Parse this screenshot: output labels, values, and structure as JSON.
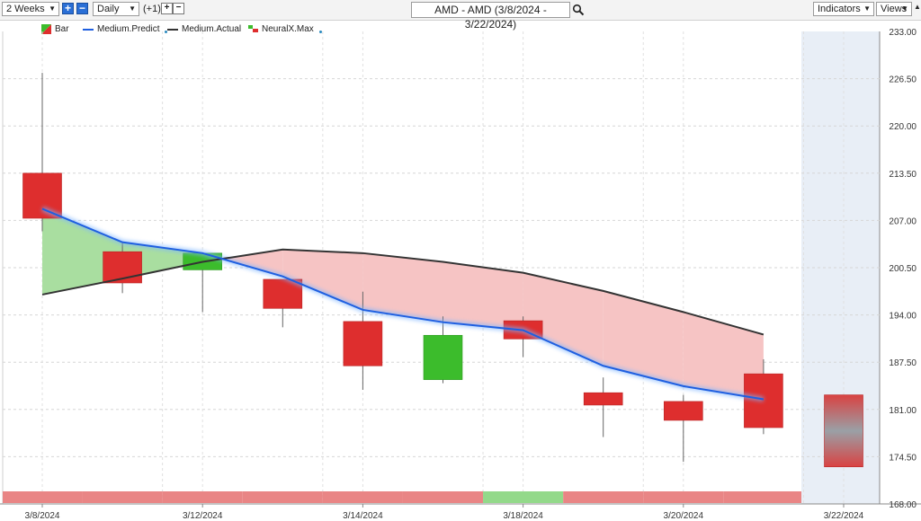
{
  "toolbar": {
    "period": "2 Weeks",
    "interval": "Daily",
    "offset": "(+1)",
    "title": "AMD - AMD (3/8/2024 - 3/22/2024)",
    "indicators": "Indicators",
    "views": "Views"
  },
  "icons": {
    "zoom_in": "plus-icon",
    "zoom_out": "minus-icon",
    "search": "search-icon",
    "pin": "pin-icon"
  },
  "legend": [
    {
      "label": "Bar",
      "icon": "bar-swatch-icon"
    },
    {
      "label": "Medium.Predict",
      "color": "#1f5fe0"
    },
    {
      "label": "Medium.Actual",
      "color": "#333333"
    },
    {
      "label": "NeuralX.Max",
      "icon": "neuralx-flag-icon"
    }
  ],
  "colors": {
    "up": "#3cbc2c",
    "down": "#de2e2e",
    "predict": "#1f5fe0",
    "actual": "#333333",
    "fill_above": "#a9dea0",
    "fill_below": "#f6c4c4",
    "strip_up": "#93d98a",
    "strip_down": "#e98585",
    "forecast_bg": "#e8eef6"
  },
  "chart_data": {
    "type": "candlestick",
    "y_ticks": [
      "233.00",
      "226.50",
      "220.00",
      "213.50",
      "207.00",
      "200.50",
      "194.00",
      "187.50",
      "181.00",
      "174.50",
      "168.00"
    ],
    "ylim": [
      168,
      233
    ],
    "x_tick_labels": [
      {
        "index": 0,
        "label": "3/8/2024"
      },
      {
        "index": 2,
        "label": "3/12/2024"
      },
      {
        "index": 4,
        "label": "3/14/2024"
      },
      {
        "index": 6,
        "label": "3/18/2024"
      },
      {
        "index": 8,
        "label": "3/20/2024"
      },
      {
        "index": 10,
        "label": "3/22/2024"
      }
    ],
    "bars": [
      {
        "date": "3/8/2024",
        "open": 213.5,
        "high": 227.3,
        "low": 205.5,
        "close": 207.3,
        "dir": "down"
      },
      {
        "date": "3/11/2024",
        "open": 202.7,
        "high": 204.0,
        "low": 197.0,
        "close": 198.4,
        "dir": "down"
      },
      {
        "date": "3/12/2024",
        "open": 200.2,
        "high": 202.6,
        "low": 194.4,
        "close": 202.5,
        "dir": "up"
      },
      {
        "date": "3/13/2024",
        "open": 198.9,
        "high": 198.9,
        "low": 192.3,
        "close": 194.9,
        "dir": "down"
      },
      {
        "date": "3/14/2024",
        "open": 193.1,
        "high": 197.2,
        "low": 183.7,
        "close": 187.0,
        "dir": "down"
      },
      {
        "date": "3/15/2024",
        "open": 185.1,
        "high": 193.8,
        "low": 184.6,
        "close": 191.2,
        "dir": "up"
      },
      {
        "date": "3/18/2024",
        "open": 193.2,
        "high": 193.8,
        "low": 188.2,
        "close": 190.7,
        "dir": "down"
      },
      {
        "date": "3/19/2024",
        "open": 183.3,
        "high": 185.4,
        "low": 177.2,
        "close": 181.6,
        "dir": "down"
      },
      {
        "date": "3/20/2024",
        "open": 182.1,
        "high": 183.0,
        "low": 173.8,
        "close": 179.5,
        "dir": "down"
      },
      {
        "date": "3/21/2024",
        "open": 185.9,
        "high": 187.9,
        "low": 177.6,
        "close": 178.5,
        "dir": "down"
      },
      {
        "date": "3/22/2024",
        "open": 183.0,
        "high": 183.0,
        "low": 173.1,
        "close": 173.1,
        "dir": "forecast"
      }
    ],
    "series": [
      {
        "name": "Medium.Predict",
        "values": [
          208.6,
          204.0,
          202.5,
          199.3,
          194.7,
          193.0,
          191.9,
          187.0,
          184.2,
          182.4
        ]
      },
      {
        "name": "Medium.Actual",
        "values": [
          196.8,
          199.0,
          201.3,
          203.0,
          202.5,
          201.3,
          199.8,
          197.3,
          194.4,
          191.3
        ]
      }
    ],
    "neuralx_strip": [
      "down",
      "down",
      "down",
      "down",
      "down",
      "down",
      "up",
      "down",
      "down",
      "down"
    ]
  }
}
